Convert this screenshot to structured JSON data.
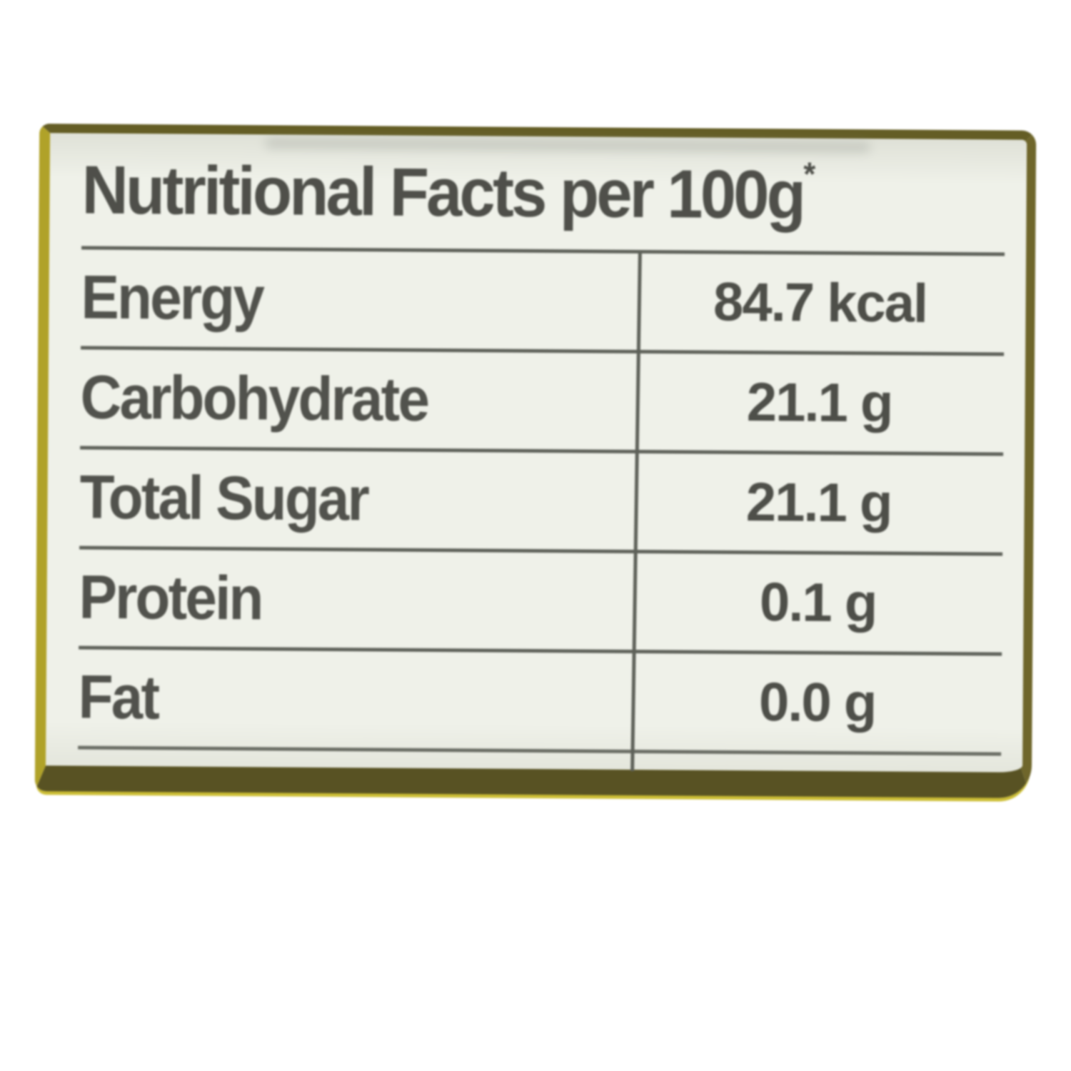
{
  "label": {
    "title": "Nutritional Facts per 100g",
    "title_superscript": "*",
    "rows": [
      {
        "name": "Energy",
        "value": "84.7 kcal"
      },
      {
        "name": "Carbohydrate",
        "value": "21.1 g"
      },
      {
        "name": "Total Sugar",
        "value": "21.1 g"
      },
      {
        "name": "Protein",
        "value": "0.1 g"
      },
      {
        "name": "Fat",
        "value": "0.0 g"
      }
    ],
    "colors": {
      "border_yellow": "#b2a326",
      "border_olive": "#575120",
      "label_background": "#f2f4ec",
      "text": "#4d4e48",
      "grid_line": "#5e6159",
      "page_background": "#ffffff"
    }
  }
}
